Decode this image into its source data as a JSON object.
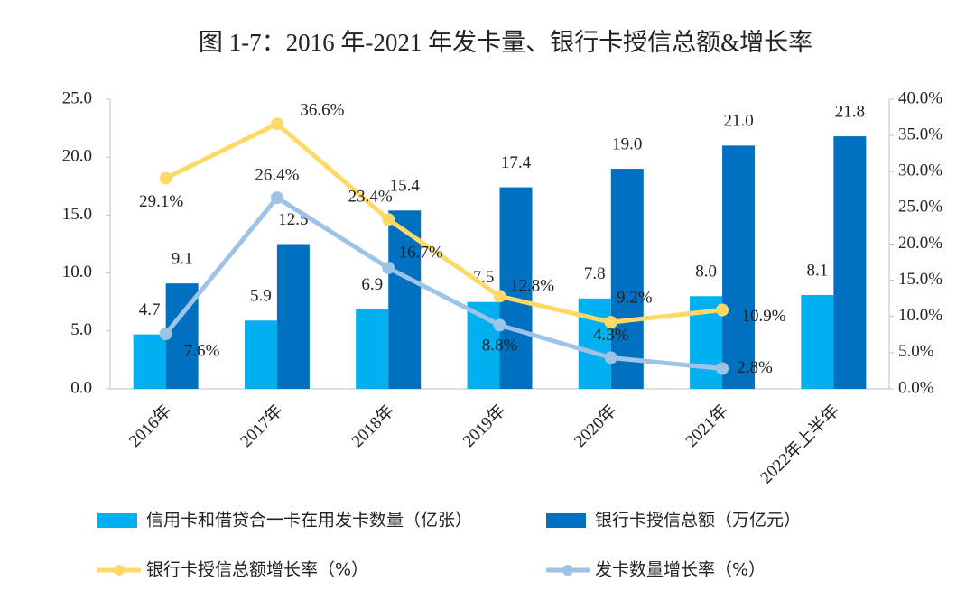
{
  "chart_data": {
    "type": "bar_line",
    "title": "图 1-7：2016 年-2021 年发卡量、银行卡授信总额&增长率",
    "categories": [
      "2016年",
      "2017年",
      "2018年",
      "2019年",
      "2020年",
      "2021年",
      "2022年上半年"
    ],
    "series": [
      {
        "name": "信用卡和借贷合一卡在用发卡数量（亿张）",
        "type": "bar",
        "color": "#00b0f0",
        "axis": "y",
        "values": [
          4.7,
          5.9,
          6.9,
          7.5,
          7.8,
          8.0,
          8.1
        ],
        "value_labels": [
          "4.7",
          "5.9",
          "6.9",
          "7.5",
          "7.8",
          "8.0",
          "8.1"
        ]
      },
      {
        "name": "银行卡授信总额（万亿元）",
        "type": "bar",
        "color": "#0070c0",
        "axis": "y",
        "values": [
          9.1,
          12.5,
          15.4,
          17.4,
          19.0,
          21.0,
          21.8
        ],
        "value_labels": [
          "9.1",
          "12.5",
          "15.4",
          "17.4",
          "19.0",
          "21.0",
          "21.8"
        ]
      },
      {
        "name": "银行卡授信总额增长率（%）",
        "type": "line",
        "color": "#ffd966",
        "axis": "y2",
        "values": [
          29.1,
          36.6,
          23.4,
          12.8,
          9.2,
          10.9,
          null
        ],
        "value_labels": [
          "29.1%",
          "36.6%",
          "23.4%",
          "12.8%",
          "9.2%",
          "10.9%",
          null
        ]
      },
      {
        "name": "发卡数量增长率（%）",
        "type": "line",
        "color": "#9dc3e6",
        "axis": "y2",
        "values": [
          7.6,
          26.4,
          16.7,
          8.8,
          4.3,
          2.8,
          null
        ],
        "value_labels": [
          "7.6%",
          "26.4%",
          "16.7%",
          "8.8%",
          "4.3%",
          "2.8%",
          null
        ]
      }
    ],
    "ylim": [
      0,
      25
    ],
    "yticks": [
      {
        "value": 0,
        "label": "0.0"
      },
      {
        "value": 5,
        "label": "5.0"
      },
      {
        "value": 10,
        "label": "10.0"
      },
      {
        "value": 15,
        "label": "15.0"
      },
      {
        "value": 20,
        "label": "20.0"
      },
      {
        "value": 25,
        "label": "25.0"
      }
    ],
    "y2lim": [
      0,
      40
    ],
    "y2ticks": [
      {
        "value": 0,
        "label": "0.0%"
      },
      {
        "value": 5,
        "label": "5.0%"
      },
      {
        "value": 10,
        "label": "10.0%"
      },
      {
        "value": 15,
        "label": "15.0%"
      },
      {
        "value": 20,
        "label": "20.0%"
      },
      {
        "value": 25,
        "label": "25.0%"
      },
      {
        "value": 30,
        "label": "30.0%"
      },
      {
        "value": 35,
        "label": "35.0%"
      },
      {
        "value": 40,
        "label": "40.0%"
      }
    ],
    "grid": false,
    "legend": "bottom"
  }
}
